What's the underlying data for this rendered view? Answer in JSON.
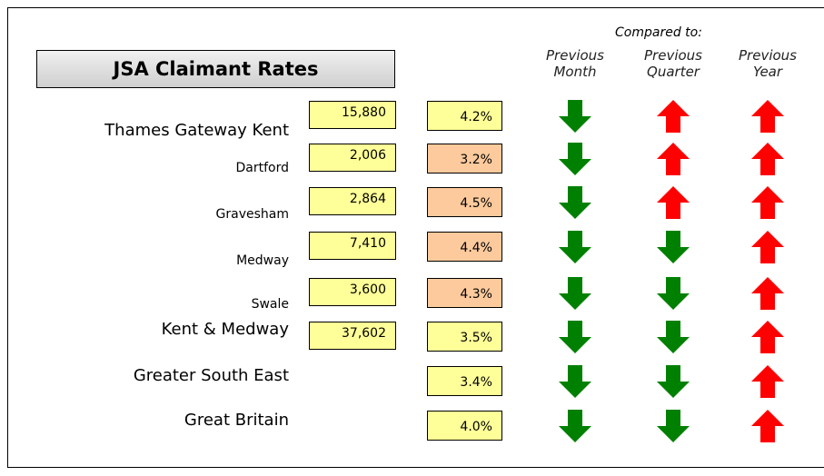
{
  "title": "JSA Claimant Rates",
  "compared_to": "Compared to:",
  "columns": [
    "Previous Month",
    "Previous Quarter",
    "Previous Year"
  ],
  "rows": [
    {
      "name": "Thames Gateway Kent",
      "count": "15,880",
      "rate": "4.2%",
      "rate_color": "#ffff99",
      "trend": [
        "down",
        "up",
        "up"
      ]
    },
    {
      "name": "Dartford",
      "count": "2,006",
      "rate": "3.2%",
      "rate_color": "#fcca9c",
      "trend": [
        "down",
        "up",
        "up"
      ]
    },
    {
      "name": "Gravesham",
      "count": "2,864",
      "rate": "4.5%",
      "rate_color": "#fcca9c",
      "trend": [
        "down",
        "up",
        "up"
      ]
    },
    {
      "name": "Medway",
      "count": "7,410",
      "rate": "4.4%",
      "rate_color": "#fcca9c",
      "trend": [
        "down",
        "down",
        "up"
      ]
    },
    {
      "name": "Swale",
      "count": "3,600",
      "rate": "4.3%",
      "rate_color": "#fcca9c",
      "trend": [
        "down",
        "down",
        "up"
      ]
    },
    {
      "name": "Kent & Medway",
      "count": "37,602",
      "rate": "3.5%",
      "rate_color": "#ffff99",
      "trend": [
        "down",
        "down",
        "up"
      ]
    },
    {
      "name": "Greater South East",
      "count": null,
      "rate": "3.4%",
      "rate_color": "#ffff99",
      "trend": [
        "down",
        "down",
        "up"
      ]
    },
    {
      "name": "Great Britain",
      "count": null,
      "rate": "4.0%",
      "rate_color": "#ffff99",
      "trend": [
        "down",
        "down",
        "up"
      ]
    }
  ]
}
